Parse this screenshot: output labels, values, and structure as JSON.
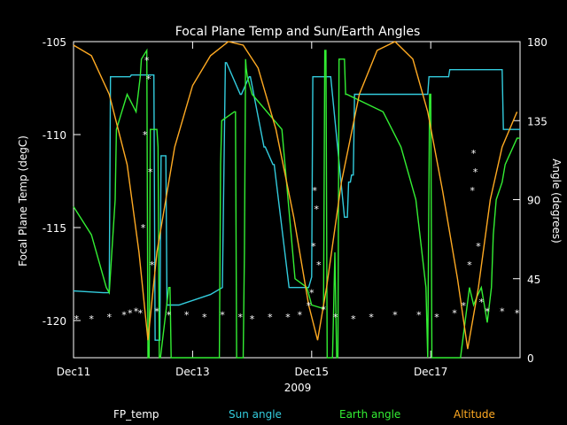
{
  "colors": {
    "background": "#000000",
    "axes": "#ffffff",
    "fp_temp": "#ffffff",
    "sun_angle": "#33ccdd",
    "earth_angle": "#33ee33",
    "altitude": "#ffaa22"
  },
  "chart_data": {
    "type": "line",
    "title": "Focal Plane Temp and Sun/Earth Angles",
    "xlabel": "2009",
    "ylabel_left": "Focal Plane Temp (degC)",
    "ylabel_right": "Angle (degrees)",
    "x_unit": "day of Dec 2009",
    "xlim": [
      11.0,
      18.5
    ],
    "ylim_left": [
      -122,
      -105
    ],
    "ylim_right": [
      0,
      180
    ],
    "xticks": [
      {
        "label": "Dec11",
        "x": 11
      },
      {
        "label": "Dec13",
        "x": 13
      },
      {
        "label": "Dec15",
        "x": 15
      },
      {
        "label": "Dec17",
        "x": 17
      }
    ],
    "yticks_left": [
      "-105",
      "-110",
      "-115",
      "-120"
    ],
    "yticks_left_values": [
      -105,
      -110,
      -115,
      -120
    ],
    "yticks_right": [
      "180",
      "135",
      "90",
      "45",
      "0"
    ],
    "yticks_right_values": [
      180,
      135,
      90,
      45,
      0
    ],
    "legend": [
      "FP_temp",
      "Sun angle",
      "Earth angle",
      "Altitude"
    ],
    "legend_placement": "bottom",
    "series": [
      {
        "name": "FP_temp",
        "axis": "left",
        "style": "asterisk",
        "x": [
          11.05,
          11.3,
          11.6,
          11.85,
          11.95,
          12.05,
          12.12,
          12.17,
          12.2,
          12.23,
          12.26,
          12.29,
          12.32,
          12.4,
          12.6,
          12.9,
          13.2,
          13.5,
          13.8,
          14.0,
          14.3,
          14.6,
          14.8,
          14.95,
          15.0,
          15.03,
          15.05,
          15.08,
          15.12,
          15.2,
          15.4,
          15.7,
          16.0,
          16.4,
          16.8,
          17.1,
          17.4,
          17.55,
          17.65,
          17.7,
          17.72,
          17.75,
          17.8,
          17.85,
          17.95,
          18.2,
          18.45
        ],
        "y": [
          -119.9,
          -119.9,
          -119.8,
          -119.7,
          -119.6,
          -119.5,
          -119.6,
          -115,
          -110,
          -106,
          -107,
          -112,
          -117,
          -119.5,
          -119.7,
          -119.7,
          -119.8,
          -119.7,
          -119.8,
          -119.9,
          -119.8,
          -119.8,
          -119.7,
          -119.2,
          -118.5,
          -116,
          -113,
          -114,
          -117,
          -119.4,
          -119.8,
          -119.9,
          -119.8,
          -119.7,
          -119.7,
          -119.8,
          -119.6,
          -119.2,
          -117,
          -113,
          -111,
          -112,
          -116,
          -119,
          -119.5,
          -119.5,
          -119.6
        ]
      },
      {
        "name": "Sun angle",
        "axis": "right",
        "x": [
          11.0,
          11.5,
          11.6,
          11.62,
          11.95,
          11.97,
          12.35,
          12.37,
          12.45,
          12.47,
          12.55,
          12.57,
          12.75,
          12.77,
          13.3,
          13.5,
          13.55,
          13.57,
          13.8,
          13.82,
          13.95,
          13.97,
          14.2,
          14.22,
          14.35,
          14.37,
          14.62,
          14.8,
          14.95,
          15.0,
          15.02,
          15.3,
          15.32,
          15.55,
          15.6,
          15.62,
          15.65,
          15.67,
          15.7,
          15.72,
          16.8,
          16.95,
          16.97,
          17.1,
          17.15,
          17.3,
          17.32,
          17.8,
          18.2,
          18.22,
          18.5
        ],
        "y": [
          38,
          37,
          37,
          160,
          160,
          161,
          161,
          10,
          10,
          115,
          115,
          30,
          30,
          30,
          36,
          40,
          168,
          168,
          150,
          150,
          160,
          160,
          120,
          120,
          110,
          110,
          40,
          40,
          40,
          46,
          160,
          160,
          160,
          80,
          80,
          100,
          100,
          104,
          104,
          150,
          150,
          150,
          160,
          160,
          160,
          160,
          164,
          164,
          164,
          130,
          130
        ]
      },
      {
        "name": "Earth angle",
        "axis": "right",
        "x": [
          11.0,
          11.3,
          11.55,
          11.6,
          11.7,
          11.72,
          11.9,
          12.05,
          12.12,
          12.14,
          12.23,
          12.25,
          12.27,
          12.29,
          12.4,
          12.42,
          12.44,
          12.46,
          12.6,
          12.62,
          12.64,
          13.45,
          13.47,
          13.49,
          13.7,
          13.72,
          13.74,
          13.85,
          13.87,
          13.89,
          13.9,
          13.92,
          14.0,
          14.5,
          14.72,
          14.92,
          15.0,
          15.2,
          15.22,
          15.24,
          15.26,
          15.35,
          15.37,
          15.39,
          15.42,
          15.44,
          15.46,
          15.55,
          15.57,
          15.59,
          16.2,
          16.5,
          16.75,
          16.92,
          16.95,
          16.98,
          17.0,
          17.02,
          17.08,
          17.5,
          17.65,
          17.72,
          17.78,
          17.85,
          17.9,
          17.95,
          18.02,
          18.05,
          18.1,
          18.2,
          18.25,
          18.45,
          18.5
        ],
        "y": [
          86,
          70,
          40,
          37,
          90,
          130,
          150,
          140,
          160,
          170,
          175,
          0,
          0,
          130,
          130,
          120,
          0,
          0,
          40,
          40,
          0,
          0,
          110,
          135,
          140,
          140,
          0,
          0,
          60,
          170,
          165,
          160,
          150,
          130,
          45,
          40,
          30,
          28,
          175,
          175,
          0,
          0,
          30,
          60,
          0,
          0,
          170,
          170,
          150,
          150,
          140,
          120,
          90,
          40,
          0,
          150,
          150,
          0,
          0,
          0,
          40,
          30,
          35,
          40,
          30,
          20,
          40,
          70,
          90,
          100,
          110,
          125,
          125
        ]
      },
      {
        "name": "Altitude",
        "axis": "right",
        "style": "curve",
        "x": [
          11.0,
          11.3,
          11.6,
          11.9,
          12.1,
          12.25,
          12.4,
          12.7,
          13.0,
          13.3,
          13.6,
          13.85,
          14.1,
          14.4,
          14.7,
          14.95,
          15.1,
          15.25,
          15.5,
          15.8,
          16.1,
          16.4,
          16.7,
          16.95,
          17.2,
          17.45,
          17.62,
          17.8,
          18.0,
          18.2,
          18.45
        ],
        "y": [
          178,
          172,
          150,
          110,
          60,
          10,
          60,
          120,
          155,
          172,
          180,
          178,
          165,
          130,
          80,
          30,
          10,
          40,
          100,
          150,
          175,
          180,
          170,
          140,
          95,
          45,
          5,
          40,
          90,
          120,
          140
        ]
      }
    ]
  }
}
